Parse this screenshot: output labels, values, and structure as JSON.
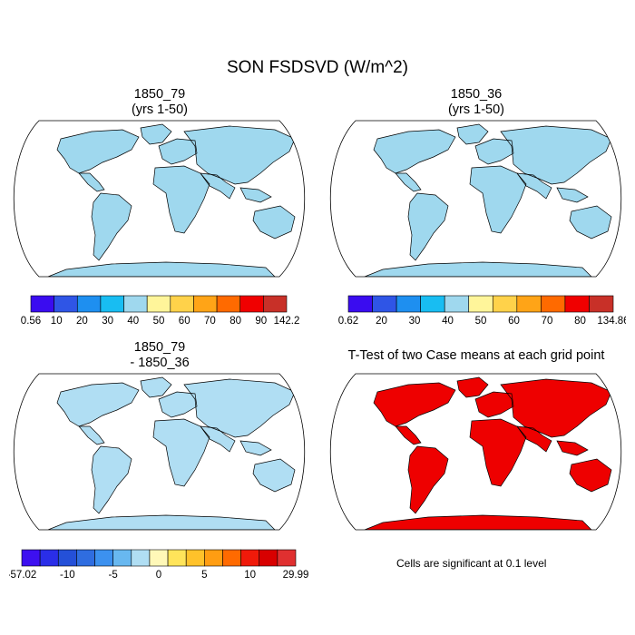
{
  "figure": {
    "title": "SON FSDSVD (W/m^2)"
  },
  "panels": [
    {
      "id": "case1",
      "title_line1": "1850_79",
      "title_line2": "(yrs 1-50)",
      "colorbar": {
        "labels": [
          "0.56",
          "10",
          "20",
          "30",
          "40",
          "50",
          "60",
          "70",
          "80",
          "90",
          "142.2"
        ],
        "colors": [
          "#3a0cf0",
          "#2f55e6",
          "#1e8ff0",
          "#18bdf2",
          "#9fd8ee",
          "#fff59a",
          "#ffd24a",
          "#ffa417",
          "#ff6a00",
          "#f00000",
          "#c83028"
        ]
      }
    },
    {
      "id": "case2",
      "title_line1": "1850_36",
      "title_line2": "(yrs 1-50)",
      "colorbar": {
        "labels": [
          "0.62",
          "20",
          "30",
          "40",
          "50",
          "60",
          "70",
          "80",
          "134.86"
        ],
        "colors": [
          "#3a0cf0",
          "#2f55e6",
          "#1e8ff0",
          "#18bdf2",
          "#9fd8ee",
          "#fff59a",
          "#ffd24a",
          "#ffa417",
          "#ff6a00",
          "#f00000",
          "#c83028"
        ]
      }
    },
    {
      "id": "diff",
      "title_line1": "1850_79",
      "title_line2": "- 1850_36",
      "colorbar": {
        "labels": [
          "-57.02",
          "-10",
          "-5",
          "0",
          "5",
          "10",
          "29.99"
        ],
        "colors": [
          "#3d10f0",
          "#2a2ee8",
          "#2450d8",
          "#2f6de0",
          "#3c91ef",
          "#68b8f0",
          "#b0def3",
          "#fff8b8",
          "#ffe45a",
          "#ffc22a",
          "#ff9d12",
          "#ff6a00",
          "#f01a0a",
          "#d80000",
          "#e03030"
        ]
      }
    },
    {
      "id": "ttest",
      "title_line1": "T-Test of two Case means at each grid point",
      "note": "Cells are significant at 0.1 level",
      "color": "#ee0000"
    }
  ]
}
